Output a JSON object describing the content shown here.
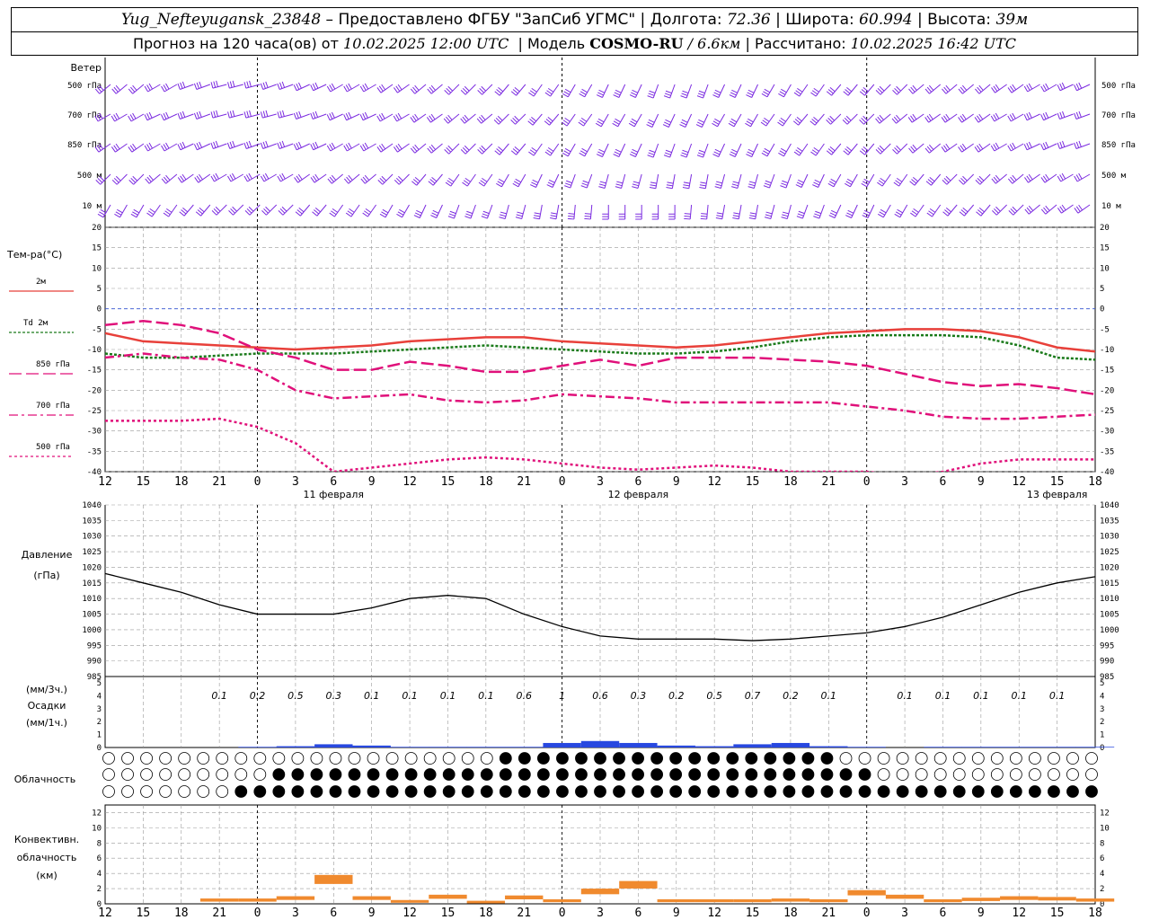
{
  "header": {
    "station": "Yug_Nefteyugansk_23848",
    "provider": "– Предоставлено ФГБУ \"ЗапСиб УГМС\"",
    "lon_label": "Долгота:",
    "lon": "72.36",
    "lat_label": "Широта:",
    "lat": "60.994",
    "alt_label": "Высота:",
    "alt": "39м",
    "forecast_label": "Прогноз на 120 часа(ов) от",
    "forecast_from": "10.02.2025 12:00 UTC",
    "model_label": "Модель",
    "model": "COSMO-RU",
    "resolution": "/ 6.6км",
    "calc_label": "Рассчитано:",
    "calc_time": "10.02.2025 16:42 UTC"
  },
  "labels": {
    "wind": "Ветер",
    "levels": [
      "500 гПа",
      "700 гПа",
      "850 гПа",
      "500 м",
      "10  м"
    ],
    "temp_title": "Тем-ра(°C)",
    "temp_legend": [
      {
        "label": "2м",
        "color": "#e8403a",
        "dash": ""
      },
      {
        "label": "Td  2м",
        "color": "#1a7a1a",
        "dash": "3,2"
      },
      {
        "label": "850 гПа",
        "color": "#e0107a",
        "dash": "14,5"
      },
      {
        "label": "700 гПа",
        "color": "#e0107a",
        "dash": "10,4,3,4"
      },
      {
        "label": "500 гПа",
        "color": "#e0107a",
        "dash": "3,3"
      }
    ],
    "pres_title_1": "Давление",
    "pres_title_2": "(гПа)",
    "precip_title_1": "(мм/3ч.)",
    "precip_title_2": "Осадки",
    "precip_title_3": "(мм/1ч.)",
    "cloud_title": "Облачность",
    "conv_title_1": "Конвективн.",
    "conv_title_2": "облачность",
    "conv_title_3": "(км)",
    "days": [
      "11 февраля",
      "12 февраля",
      "13 февраля"
    ]
  },
  "x_hours": [
    "12",
    "15",
    "18",
    "21",
    "0",
    "3",
    "6",
    "9",
    "12",
    "15",
    "18",
    "21",
    "0",
    "3",
    "6",
    "9",
    "12",
    "15",
    "18",
    "21",
    "0",
    "3",
    "6",
    "9",
    "12",
    "15",
    "18"
  ],
  "chart_data": [
    {
      "type": "line",
      "title": "Тем-ра(°C)",
      "ylim": [
        -40,
        20
      ],
      "yticks": [
        "20",
        "15",
        "10",
        "5",
        "0",
        "-5",
        "-10",
        "-15",
        "-20",
        "-25",
        "-30",
        "-35",
        "-40"
      ],
      "x_hours_from_start": [
        0,
        3,
        6,
        9,
        12,
        15,
        18,
        21,
        24,
        27,
        30,
        33,
        36,
        39,
        42,
        45,
        48,
        51,
        54,
        57,
        60,
        63,
        66,
        69,
        72,
        75,
        78
      ],
      "series": [
        {
          "name": "2м",
          "color": "#e8403a",
          "dash": "",
          "width": 2.5,
          "values": [
            -6,
            -8,
            -8.5,
            -9,
            -9.5,
            -10,
            -9.5,
            -9,
            -8,
            -7.5,
            -7,
            -7,
            -8,
            -8.5,
            -9,
            -9.5,
            -9,
            -8,
            -7,
            -6,
            -5.5,
            -5,
            -5,
            -5.5,
            -7,
            -9.5,
            -10.5
          ]
        },
        {
          "name": "Td  2м",
          "color": "#1a7a1a",
          "dash": "3,2",
          "width": 2.5,
          "values": [
            -11,
            -12,
            -12,
            -11.5,
            -11,
            -11,
            -11,
            -10.5,
            -10,
            -9.5,
            -9,
            -9.5,
            -10,
            -10.5,
            -11,
            -11,
            -10.5,
            -9.5,
            -8,
            -7,
            -6.5,
            -6.5,
            -6.5,
            -7,
            -9,
            -12,
            -12.5
          ]
        },
        {
          "name": "850 гПа",
          "color": "#e0107a",
          "dash": "14,5",
          "width": 2.5,
          "values": [
            -4,
            -3,
            -4,
            -6,
            -10,
            -12,
            -15,
            -15,
            -13,
            -14,
            -15.5,
            -15.5,
            -14,
            -12.5,
            -14,
            -12,
            -12,
            -12,
            -12.5,
            -13,
            -14,
            -16,
            -18,
            -19,
            -18.5,
            -19.5,
            -21
          ]
        },
        {
          "name": "700 гПа",
          "color": "#e0107a",
          "dash": "10,4,3,4",
          "width": 2.5,
          "values": [
            -12,
            -11,
            -12,
            -12.5,
            -15,
            -20,
            -22,
            -21.5,
            -21,
            -22.5,
            -23,
            -22.5,
            -21,
            -21.5,
            -22,
            -23,
            -23,
            -23,
            -23,
            -23,
            -24,
            -25,
            -26.5,
            -27,
            -27,
            -26.5,
            -26
          ]
        },
        {
          "name": "500 гПа",
          "color": "#e0107a",
          "dash": "3,3",
          "width": 2.5,
          "values": [
            -27.5,
            -27.5,
            -27.5,
            -27,
            -29,
            -33,
            -40,
            -39,
            -38,
            -37,
            -36.5,
            -37,
            -38,
            -39,
            -39.5,
            -39,
            -38.5,
            -39,
            -40,
            -40,
            -40,
            -41,
            -40,
            -38,
            -37,
            -37,
            -37
          ]
        }
      ]
    },
    {
      "type": "line",
      "title": "Давление",
      "ylabel": "(гПа)",
      "ylim": [
        985,
        1040
      ],
      "yticks": [
        "1040",
        "1035",
        "1030",
        "1025",
        "1020",
        "1015",
        "1010",
        "1005",
        "1000",
        "995",
        "990",
        "985"
      ],
      "x_hours_from_start": [
        0,
        3,
        6,
        9,
        12,
        15,
        18,
        21,
        24,
        27,
        30,
        33,
        36,
        39,
        42,
        45,
        48,
        51,
        54,
        57,
        60,
        63,
        66,
        69,
        72,
        75,
        78
      ],
      "series": [
        {
          "name": "Давление",
          "color": "#000000",
          "values": [
            1018,
            1015,
            1012,
            1008,
            1005,
            1005,
            1005,
            1007,
            1010,
            1011,
            1010,
            1005,
            1001,
            998,
            997,
            997,
            997,
            996.5,
            997,
            998,
            999,
            1001,
            1004,
            1008,
            1012,
            1015,
            1017
          ]
        }
      ]
    },
    {
      "type": "bar",
      "title": "Осадки",
      "ylim": [
        0,
        5
      ],
      "yticks": [
        "5",
        "4",
        "3",
        "2",
        "1",
        "0"
      ],
      "labels_3h": [
        "0.1",
        "0.2",
        "0.5",
        "0.3",
        "0.1",
        "0.1",
        "0.1",
        "0.1",
        "0.6",
        "1",
        "0.6",
        "0.3",
        "0.2",
        "0.5",
        "0.7",
        "0.2",
        "0.1",
        "",
        "0.1",
        "0.1",
        "0.1",
        "0.1",
        "0.1"
      ],
      "values_1h": [
        0,
        0,
        0,
        0,
        0.05,
        0.1,
        0.25,
        0.15,
        0.05,
        0.05,
        0.05,
        0.05,
        0.35,
        0.5,
        0.35,
        0.15,
        0.1,
        0.25,
        0.35,
        0.1,
        0.05,
        0,
        0.05,
        0.05,
        0.05,
        0.05,
        0.05
      ]
    },
    {
      "type": "bar",
      "title": "Конвективн. облачность",
      "ylabel": "(км)",
      "ylim": [
        0,
        13
      ],
      "yticks": [
        "12",
        "10",
        "8",
        "6",
        "4",
        "2",
        "0"
      ],
      "x_hours_from_start": [
        3,
        6,
        9,
        12,
        15,
        18,
        21,
        24,
        27,
        30,
        33,
        36,
        39,
        42,
        45,
        48,
        51,
        54,
        57,
        60,
        63,
        66,
        69,
        72,
        75,
        78
      ],
      "tops": [
        0,
        0,
        0.7,
        0.7,
        1.0,
        3.8,
        1.0,
        0.5,
        1.2,
        0.4,
        1.1,
        0.6,
        2.0,
        3.0,
        0.6,
        0.6,
        0.6,
        0.7,
        0.6,
        1.8,
        1.2,
        0.6,
        0.8,
        1.0,
        0.9,
        0.7
      ]
    }
  ]
}
